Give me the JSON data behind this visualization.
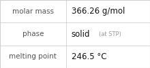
{
  "rows": [
    {
      "label": "molar mass",
      "value": "366.26 g/mol",
      "annotation": null
    },
    {
      "label": "phase",
      "value": "solid",
      "annotation": "(at STP)"
    },
    {
      "label": "melting point",
      "value": "246.5 °C",
      "annotation": null
    }
  ],
  "bg_color": "#f3f3f3",
  "cell_color": "#ffffff",
  "border_color": "#d0d0d0",
  "label_color": "#555555",
  "value_color": "#111111",
  "annotation_color": "#999999",
  "label_fontsize": 7.5,
  "value_fontsize": 8.5,
  "annotation_fontsize": 6.0,
  "col_split": 0.44,
  "font_family": "DejaVu Sans"
}
